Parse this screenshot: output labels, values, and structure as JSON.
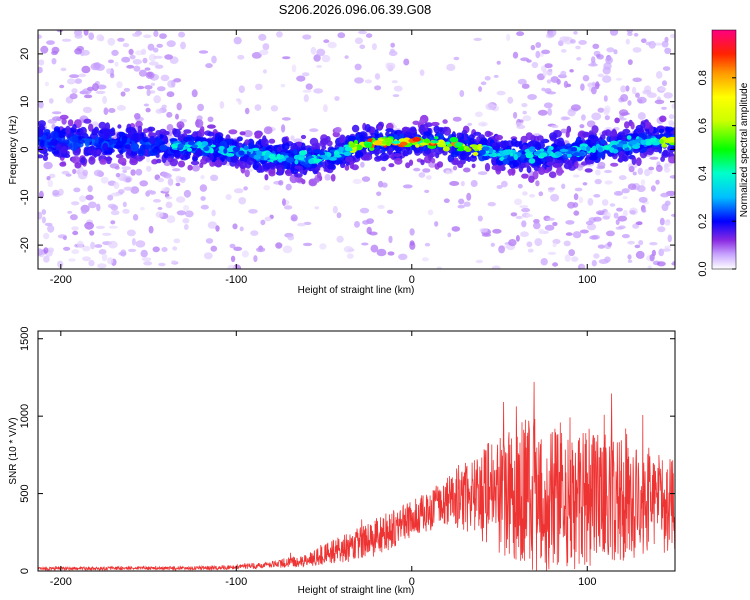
{
  "title": "S206.2026.096.06.39.G08",
  "chart_data": [
    {
      "type": "heatmap",
      "name": "spectrogram",
      "xlabel": "Height of straight line (km)",
      "ylabel": "Frequency (Hz)",
      "xlim": [
        -213,
        150
      ],
      "ylim": [
        -25,
        25
      ],
      "x_ticks": [
        -200,
        -100,
        0,
        100
      ],
      "y_ticks": [
        -20,
        -10,
        0,
        10,
        20
      ],
      "ridge": {
        "x": [
          -213,
          -180,
          -150,
          -120,
          -100,
          -80,
          -60,
          -45,
          -30,
          -15,
          0,
          15,
          30,
          50,
          70,
          90,
          110,
          130,
          150
        ],
        "freq": [
          2,
          1.5,
          1,
          0.5,
          -0.5,
          -1.5,
          -2,
          -1.5,
          1,
          1.5,
          1.5,
          1.5,
          0.5,
          -1,
          -1,
          -0.5,
          0.5,
          1.5,
          2
        ]
      },
      "colorbar": {
        "label": "Normalized spectral amplitude",
        "range": [
          0,
          1
        ],
        "ticks": [
          0.0,
          0.2,
          0.4,
          0.6,
          0.8
        ]
      }
    },
    {
      "type": "line",
      "name": "snr",
      "xlabel": "Height of straight line (km)",
      "ylabel": "SNR (10 * V/V)",
      "xlim": [
        -213,
        150
      ],
      "ylim": [
        0,
        1550
      ],
      "x_ticks": [
        -200,
        -100,
        0,
        100
      ],
      "y_ticks": [
        0,
        500,
        1000,
        1500
      ],
      "color": "#ee3333",
      "envelope": {
        "x": [
          -213,
          -110,
          -85,
          -60,
          -40,
          -20,
          0,
          20,
          35,
          50,
          70,
          90,
          110,
          130,
          150
        ],
        "base": [
          15,
          20,
          35,
          70,
          140,
          220,
          330,
          450,
          520,
          480,
          500,
          470,
          480,
          450,
          430
        ],
        "amp": [
          10,
          12,
          20,
          40,
          90,
          130,
          120,
          150,
          280,
          380,
          520,
          470,
          430,
          380,
          300
        ]
      }
    }
  ]
}
